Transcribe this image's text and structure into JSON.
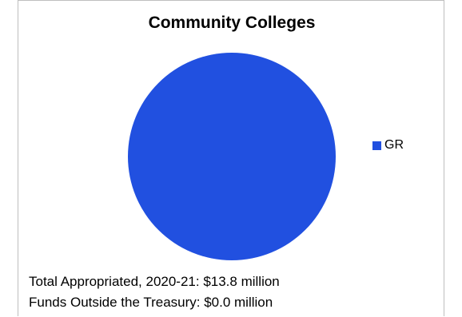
{
  "chart_data": {
    "type": "pie",
    "title": "Community Colleges",
    "slices": [
      {
        "label": "GR",
        "value": 13.8,
        "color": "#2150e0"
      }
    ],
    "legend_position": "right"
  },
  "notes": {
    "total": "Total Appropriated, 2020-21: $13.8 million",
    "outside": "Funds Outside the Treasury: $0.0 million"
  }
}
